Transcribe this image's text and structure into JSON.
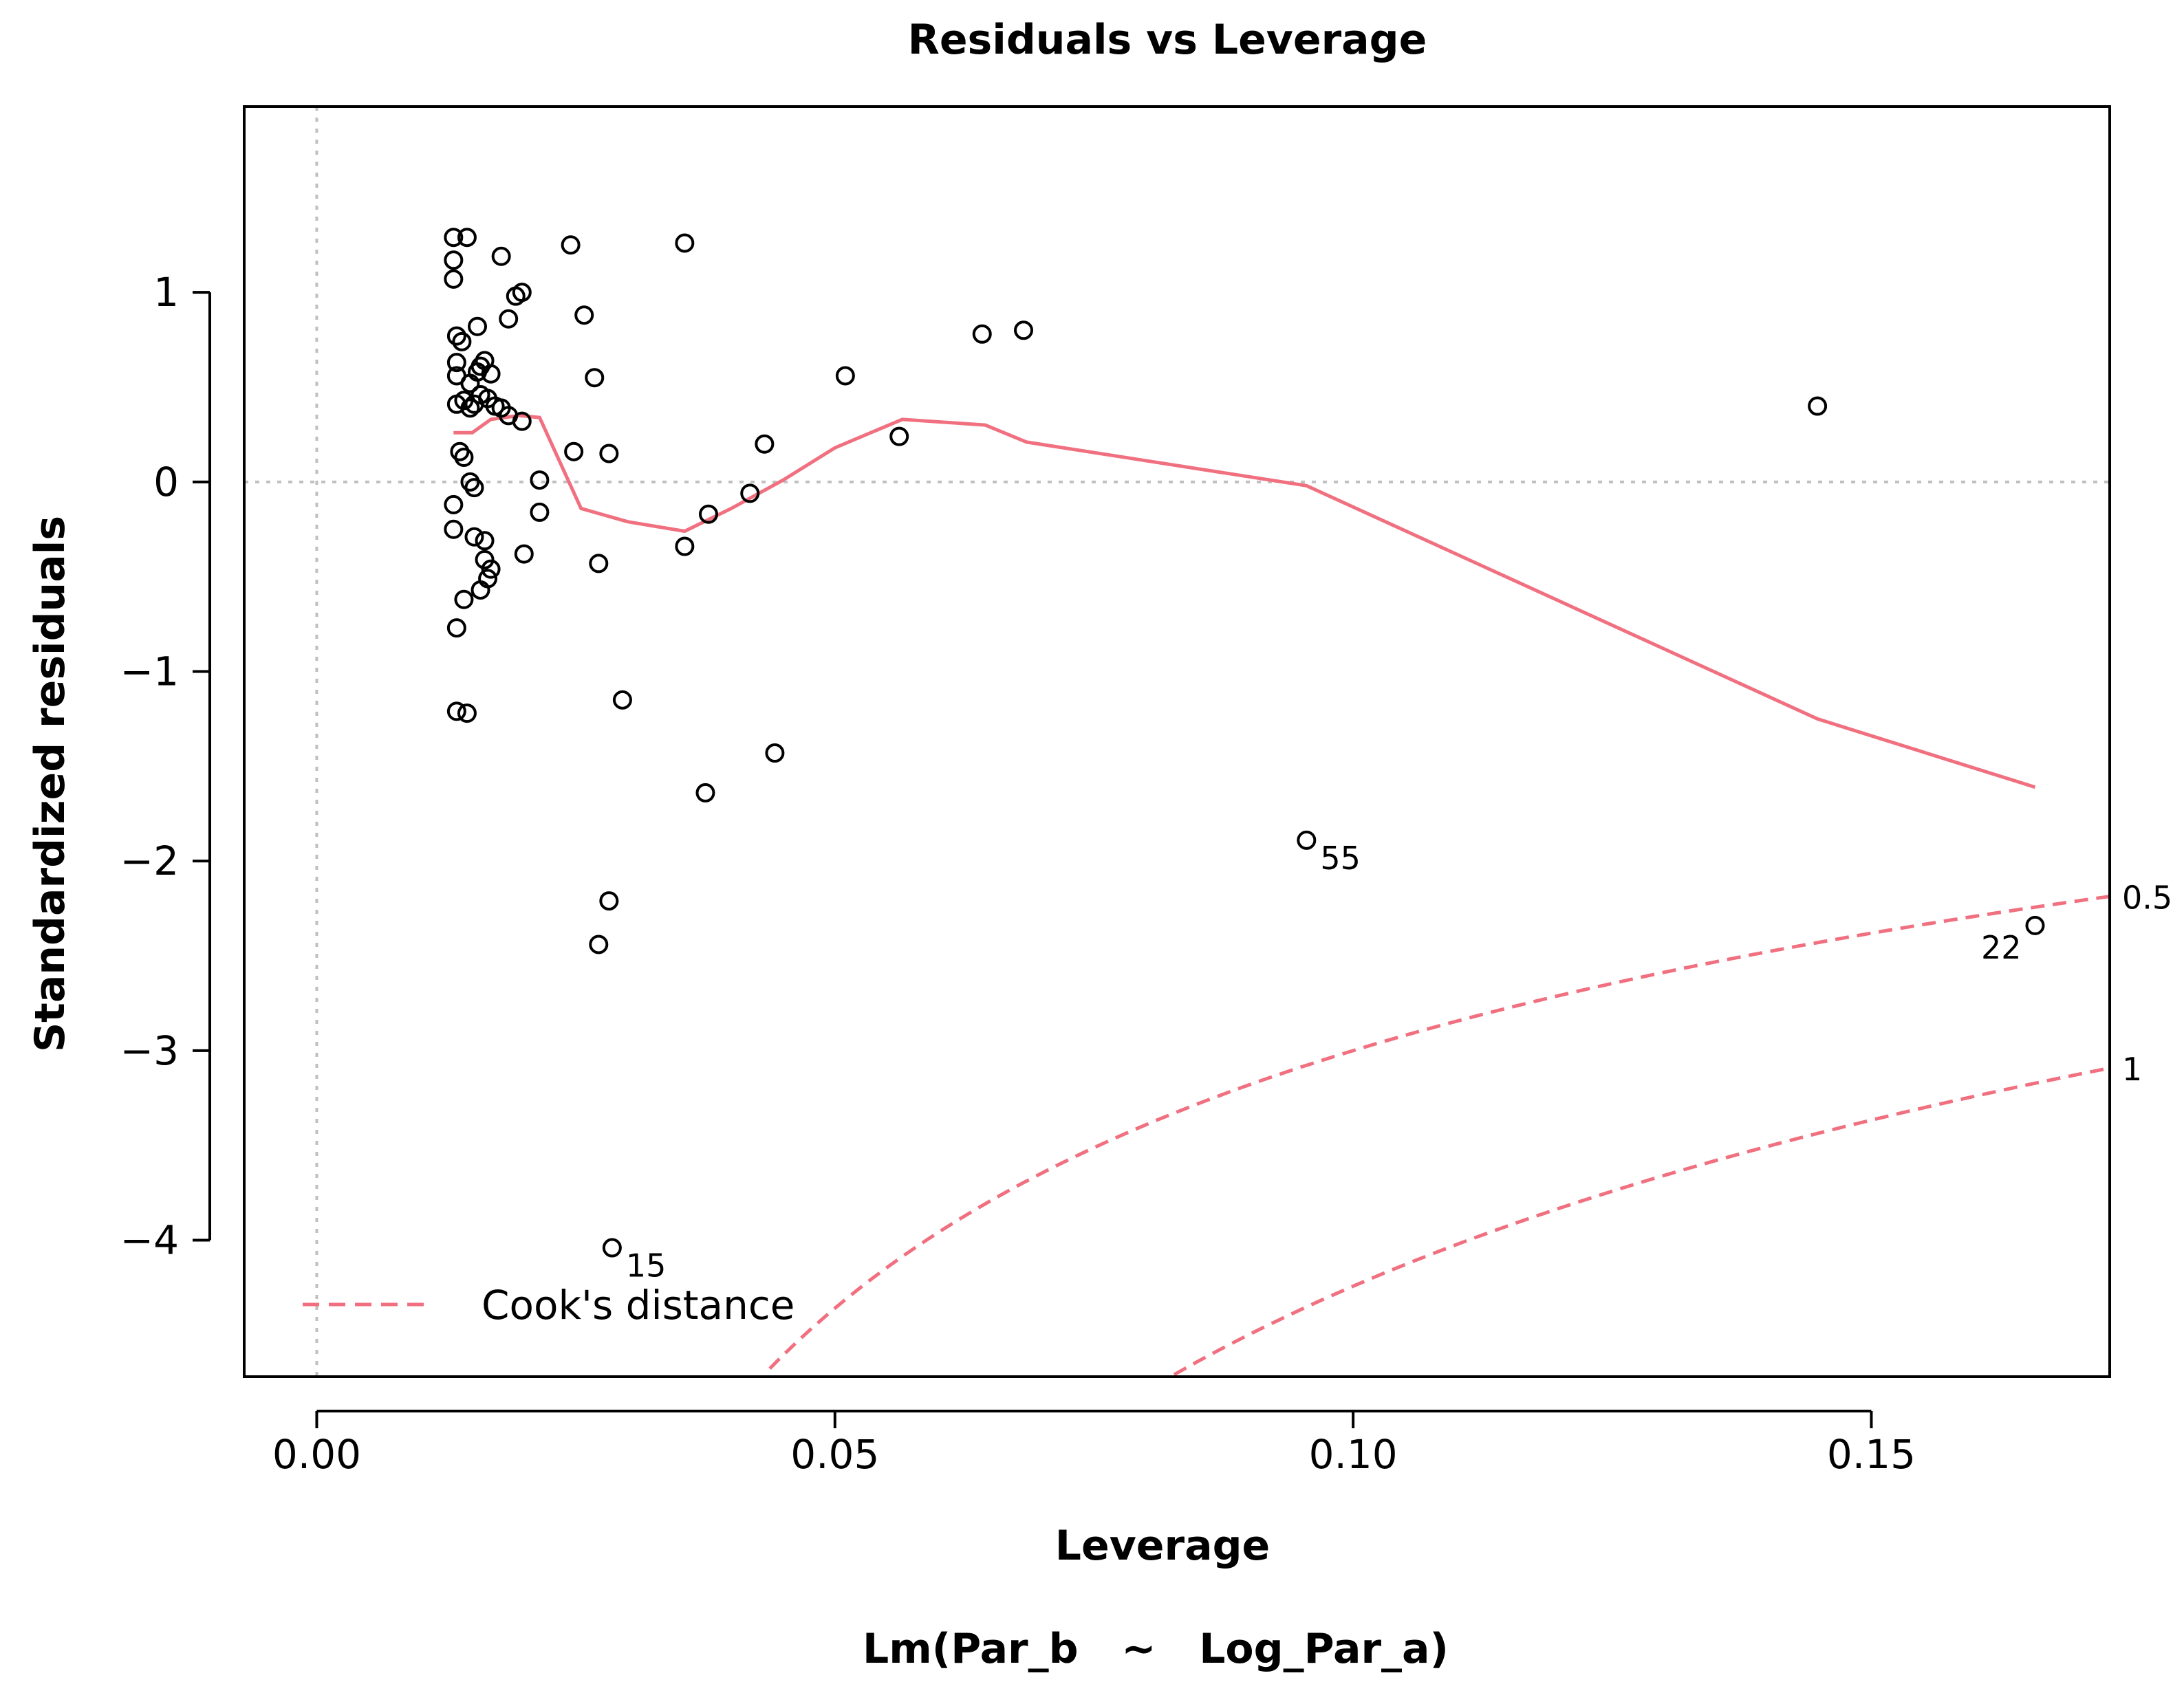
{
  "chart_data": {
    "type": "scatter",
    "title": "Residuals vs Leverage",
    "xlabel": "Leverage",
    "ylabel": "Standardized residuals",
    "subtitle": "Lm(Par_b   ~   Log_Par_a)",
    "xlim": [
      -0.007,
      0.173
    ],
    "ylim": [
      -4.72,
      1.98
    ],
    "xticks": [
      0.0,
      0.05,
      0.1,
      0.15
    ],
    "xtick_labels": [
      "0.00",
      "0.05",
      "0.10",
      "0.15"
    ],
    "yticks": [
      -4,
      -3,
      -2,
      -1,
      0,
      1
    ],
    "ytick_labels": [
      "−4",
      "−3",
      "−2",
      "−1",
      "0",
      "1"
    ],
    "points": [
      {
        "x": 0.0132,
        "y": 1.29
      },
      {
        "x": 0.0145,
        "y": 1.29
      },
      {
        "x": 0.0132,
        "y": 1.17
      },
      {
        "x": 0.0132,
        "y": 1.07
      },
      {
        "x": 0.0135,
        "y": 0.77
      },
      {
        "x": 0.014,
        "y": 0.74
      },
      {
        "x": 0.0155,
        "y": 0.82
      },
      {
        "x": 0.0135,
        "y": 0.63
      },
      {
        "x": 0.0162,
        "y": 0.64
      },
      {
        "x": 0.0135,
        "y": 0.56
      },
      {
        "x": 0.0155,
        "y": 0.58
      },
      {
        "x": 0.0158,
        "y": 0.61
      },
      {
        "x": 0.0168,
        "y": 0.57
      },
      {
        "x": 0.0148,
        "y": 0.52
      },
      {
        "x": 0.0135,
        "y": 0.41
      },
      {
        "x": 0.0142,
        "y": 0.43
      },
      {
        "x": 0.0148,
        "y": 0.39
      },
      {
        "x": 0.0152,
        "y": 0.41
      },
      {
        "x": 0.0158,
        "y": 0.46
      },
      {
        "x": 0.0165,
        "y": 0.44
      },
      {
        "x": 0.0172,
        "y": 0.4
      },
      {
        "x": 0.0178,
        "y": 0.39
      },
      {
        "x": 0.0185,
        "y": 0.35
      },
      {
        "x": 0.0198,
        "y": 0.32
      },
      {
        "x": 0.0178,
        "y": 1.19
      },
      {
        "x": 0.0192,
        "y": 0.98
      },
      {
        "x": 0.0198,
        "y": 1.0
      },
      {
        "x": 0.0185,
        "y": 0.86
      },
      {
        "x": 0.0138,
        "y": 0.16
      },
      {
        "x": 0.0142,
        "y": 0.13
      },
      {
        "x": 0.0148,
        "y": 0.0
      },
      {
        "x": 0.0152,
        "y": -0.03
      },
      {
        "x": 0.0132,
        "y": -0.12
      },
      {
        "x": 0.0132,
        "y": -0.25
      },
      {
        "x": 0.0152,
        "y": -0.29
      },
      {
        "x": 0.0162,
        "y": -0.31
      },
      {
        "x": 0.0162,
        "y": -0.41
      },
      {
        "x": 0.0168,
        "y": -0.46
      },
      {
        "x": 0.0165,
        "y": -0.51
      },
      {
        "x": 0.0158,
        "y": -0.57
      },
      {
        "x": 0.0142,
        "y": -0.62
      },
      {
        "x": 0.0135,
        "y": -0.77
      },
      {
        "x": 0.0135,
        "y": -1.21
      },
      {
        "x": 0.0145,
        "y": -1.22
      },
      {
        "x": 0.02,
        "y": -0.38
      },
      {
        "x": 0.0215,
        "y": 0.01
      },
      {
        "x": 0.0215,
        "y": -0.16
      },
      {
        "x": 0.0245,
        "y": 1.25
      },
      {
        "x": 0.0258,
        "y": 0.88
      },
      {
        "x": 0.0268,
        "y": 0.55
      },
      {
        "x": 0.0248,
        "y": 0.16
      },
      {
        "x": 0.0282,
        "y": 0.15
      },
      {
        "x": 0.0272,
        "y": -0.43
      },
      {
        "x": 0.0295,
        "y": -1.15
      },
      {
        "x": 0.0282,
        "y": -2.21
      },
      {
        "x": 0.0272,
        "y": -2.44
      },
      {
        "x": 0.0355,
        "y": 1.26
      },
      {
        "x": 0.0355,
        "y": -0.34
      },
      {
        "x": 0.0378,
        "y": -0.17
      },
      {
        "x": 0.0418,
        "y": -0.06
      },
      {
        "x": 0.0432,
        "y": 0.2
      },
      {
        "x": 0.0375,
        "y": -1.64
      },
      {
        "x": 0.0442,
        "y": -1.43
      },
      {
        "x": 0.051,
        "y": 0.56
      },
      {
        "x": 0.0562,
        "y": 0.24
      },
      {
        "x": 0.0642,
        "y": 0.78
      },
      {
        "x": 0.0682,
        "y": 0.8
      },
      {
        "x": 0.1448,
        "y": 0.4
      },
      {
        "x": 0.0955,
        "y": -1.89,
        "label": "55"
      },
      {
        "x": 0.1658,
        "y": -2.34,
        "label": "22"
      },
      {
        "x": 0.0285,
        "y": -4.04,
        "label": "15"
      }
    ],
    "smooth_line": {
      "x": [
        0.0132,
        0.015,
        0.0168,
        0.0195,
        0.0215,
        0.0255,
        0.03,
        0.0355,
        0.04,
        0.045,
        0.05,
        0.0565,
        0.0645,
        0.0685,
        0.0955,
        0.1448,
        0.1658
      ],
      "y": [
        0.26,
        0.26,
        0.33,
        0.35,
        0.34,
        -0.14,
        -0.21,
        -0.26,
        -0.14,
        0.01,
        0.18,
        0.33,
        0.3,
        0.21,
        -0.02,
        -1.25,
        -1.61
      ]
    },
    "cooks_distance": [
      {
        "level": 0.5,
        "label": "0.5"
      },
      {
        "level": 1,
        "label": "1"
      }
    ],
    "legend": {
      "label": "Cook's distance",
      "position": "bottom-left"
    },
    "colors": {
      "smooth": "#f07080",
      "cooks": "#f07080",
      "cooks_label": "#f07080",
      "points": "#000000",
      "reference": "#c0c0c0"
    }
  }
}
